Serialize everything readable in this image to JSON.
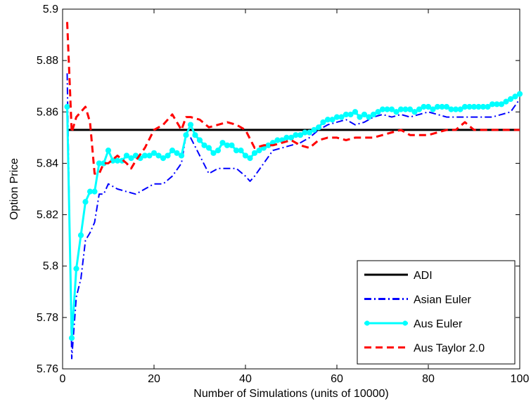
{
  "chart_data": {
    "type": "line",
    "title": "",
    "xlabel": "Number of Simulations (units of 10000)",
    "ylabel": "Option Price",
    "xlim": [
      0,
      100
    ],
    "ylim": [
      5.76,
      5.9
    ],
    "xticks": [
      0,
      20,
      40,
      60,
      80,
      100
    ],
    "yticks": [
      5.76,
      5.78,
      5.8,
      5.82,
      5.84,
      5.86,
      5.88,
      5.9
    ],
    "xtick_labels": [
      "0",
      "20",
      "40",
      "60",
      "80",
      "100"
    ],
    "ytick_labels": [
      "5.76",
      "5.78",
      "5.8",
      "5.82",
      "5.84",
      "5.86",
      "5.88",
      "5.9"
    ],
    "grid": false,
    "legend_position": "bottom-right",
    "series": [
      {
        "name": "ADI",
        "color": "#000000",
        "style": "solid",
        "marker": "none",
        "x": [
          1,
          100
        ],
        "y": [
          5.853,
          5.853
        ]
      },
      {
        "name": "Asian Euler",
        "color": "#0000ff",
        "style": "dashdot",
        "marker": "none",
        "x": [
          1,
          2,
          3,
          4,
          5,
          6,
          7,
          8,
          9,
          10,
          12,
          14,
          16,
          18,
          20,
          22,
          24,
          26,
          27,
          28,
          30,
          32,
          34,
          36,
          38,
          40,
          41,
          42,
          44,
          46,
          48,
          50,
          52,
          54,
          56,
          58,
          60,
          62,
          64,
          66,
          68,
          70,
          72,
          74,
          76,
          78,
          80,
          82,
          84,
          86,
          88,
          90,
          92,
          94,
          96,
          98,
          100
        ],
        "y": [
          5.875,
          5.764,
          5.788,
          5.795,
          5.81,
          5.813,
          5.817,
          5.828,
          5.828,
          5.832,
          5.83,
          5.829,
          5.828,
          5.83,
          5.832,
          5.832,
          5.835,
          5.84,
          5.851,
          5.85,
          5.843,
          5.836,
          5.838,
          5.838,
          5.838,
          5.835,
          5.833,
          5.835,
          5.84,
          5.845,
          5.846,
          5.847,
          5.848,
          5.85,
          5.853,
          5.855,
          5.856,
          5.857,
          5.855,
          5.856,
          5.858,
          5.859,
          5.858,
          5.859,
          5.858,
          5.859,
          5.86,
          5.859,
          5.858,
          5.858,
          5.858,
          5.858,
          5.858,
          5.858,
          5.859,
          5.86,
          5.865
        ]
      },
      {
        "name": "Aus Euler",
        "color": "#00ffff",
        "style": "solid",
        "marker": "circle",
        "x": [
          1,
          2,
          3,
          4,
          5,
          6,
          7,
          8,
          9,
          10,
          11,
          12,
          13,
          14,
          15,
          16,
          17,
          18,
          19,
          20,
          21,
          22,
          23,
          24,
          25,
          26,
          27,
          28,
          29,
          30,
          31,
          32,
          33,
          34,
          35,
          36,
          37,
          38,
          39,
          40,
          41,
          42,
          43,
          44,
          45,
          46,
          47,
          48,
          49,
          50,
          51,
          52,
          53,
          54,
          55,
          56,
          57,
          58,
          59,
          60,
          61,
          62,
          63,
          64,
          65,
          66,
          67,
          68,
          69,
          70,
          71,
          72,
          73,
          74,
          75,
          76,
          77,
          78,
          79,
          80,
          81,
          82,
          83,
          84,
          85,
          86,
          87,
          88,
          89,
          90,
          91,
          92,
          93,
          94,
          95,
          96,
          97,
          98,
          99,
          100
        ],
        "y": [
          5.862,
          5.772,
          5.799,
          5.812,
          5.825,
          5.829,
          5.829,
          5.84,
          5.84,
          5.845,
          5.841,
          5.841,
          5.841,
          5.843,
          5.842,
          5.843,
          5.842,
          5.843,
          5.843,
          5.844,
          5.843,
          5.842,
          5.843,
          5.845,
          5.844,
          5.843,
          5.851,
          5.855,
          5.851,
          5.849,
          5.847,
          5.846,
          5.844,
          5.845,
          5.848,
          5.847,
          5.847,
          5.845,
          5.845,
          5.843,
          5.842,
          5.844,
          5.845,
          5.846,
          5.847,
          5.848,
          5.849,
          5.849,
          5.85,
          5.85,
          5.851,
          5.851,
          5.852,
          5.852,
          5.853,
          5.854,
          5.856,
          5.857,
          5.857,
          5.858,
          5.858,
          5.859,
          5.859,
          5.86,
          5.858,
          5.859,
          5.858,
          5.859,
          5.86,
          5.861,
          5.861,
          5.861,
          5.86,
          5.861,
          5.861,
          5.861,
          5.86,
          5.861,
          5.862,
          5.862,
          5.861,
          5.862,
          5.862,
          5.862,
          5.861,
          5.861,
          5.861,
          5.862,
          5.862,
          5.862,
          5.862,
          5.862,
          5.862,
          5.863,
          5.863,
          5.863,
          5.864,
          5.865,
          5.866,
          5.867
        ]
      },
      {
        "name": "Aus Taylor 2.0",
        "color": "#ff0000",
        "style": "dashed",
        "marker": "none",
        "x": [
          1,
          2,
          3,
          4,
          5,
          6,
          7,
          8,
          9,
          10,
          12,
          14,
          15,
          16,
          18,
          20,
          22,
          24,
          26,
          27,
          28,
          30,
          32,
          34,
          36,
          38,
          40,
          42,
          44,
          46,
          48,
          50,
          52,
          54,
          56,
          58,
          60,
          62,
          64,
          66,
          68,
          70,
          72,
          74,
          76,
          78,
          80,
          82,
          84,
          86,
          88,
          90,
          92,
          94,
          96,
          98,
          100
        ],
        "y": [
          5.895,
          5.852,
          5.858,
          5.86,
          5.862,
          5.856,
          5.836,
          5.836,
          5.84,
          5.84,
          5.843,
          5.84,
          5.838,
          5.841,
          5.846,
          5.853,
          5.855,
          5.859,
          5.853,
          5.858,
          5.858,
          5.857,
          5.854,
          5.855,
          5.856,
          5.855,
          5.853,
          5.846,
          5.847,
          5.847,
          5.848,
          5.849,
          5.847,
          5.846,
          5.849,
          5.85,
          5.85,
          5.849,
          5.85,
          5.85,
          5.85,
          5.851,
          5.852,
          5.853,
          5.851,
          5.851,
          5.851,
          5.852,
          5.853,
          5.853,
          5.856,
          5.853,
          5.853,
          5.853,
          5.853,
          5.853,
          5.853
        ]
      }
    ]
  }
}
